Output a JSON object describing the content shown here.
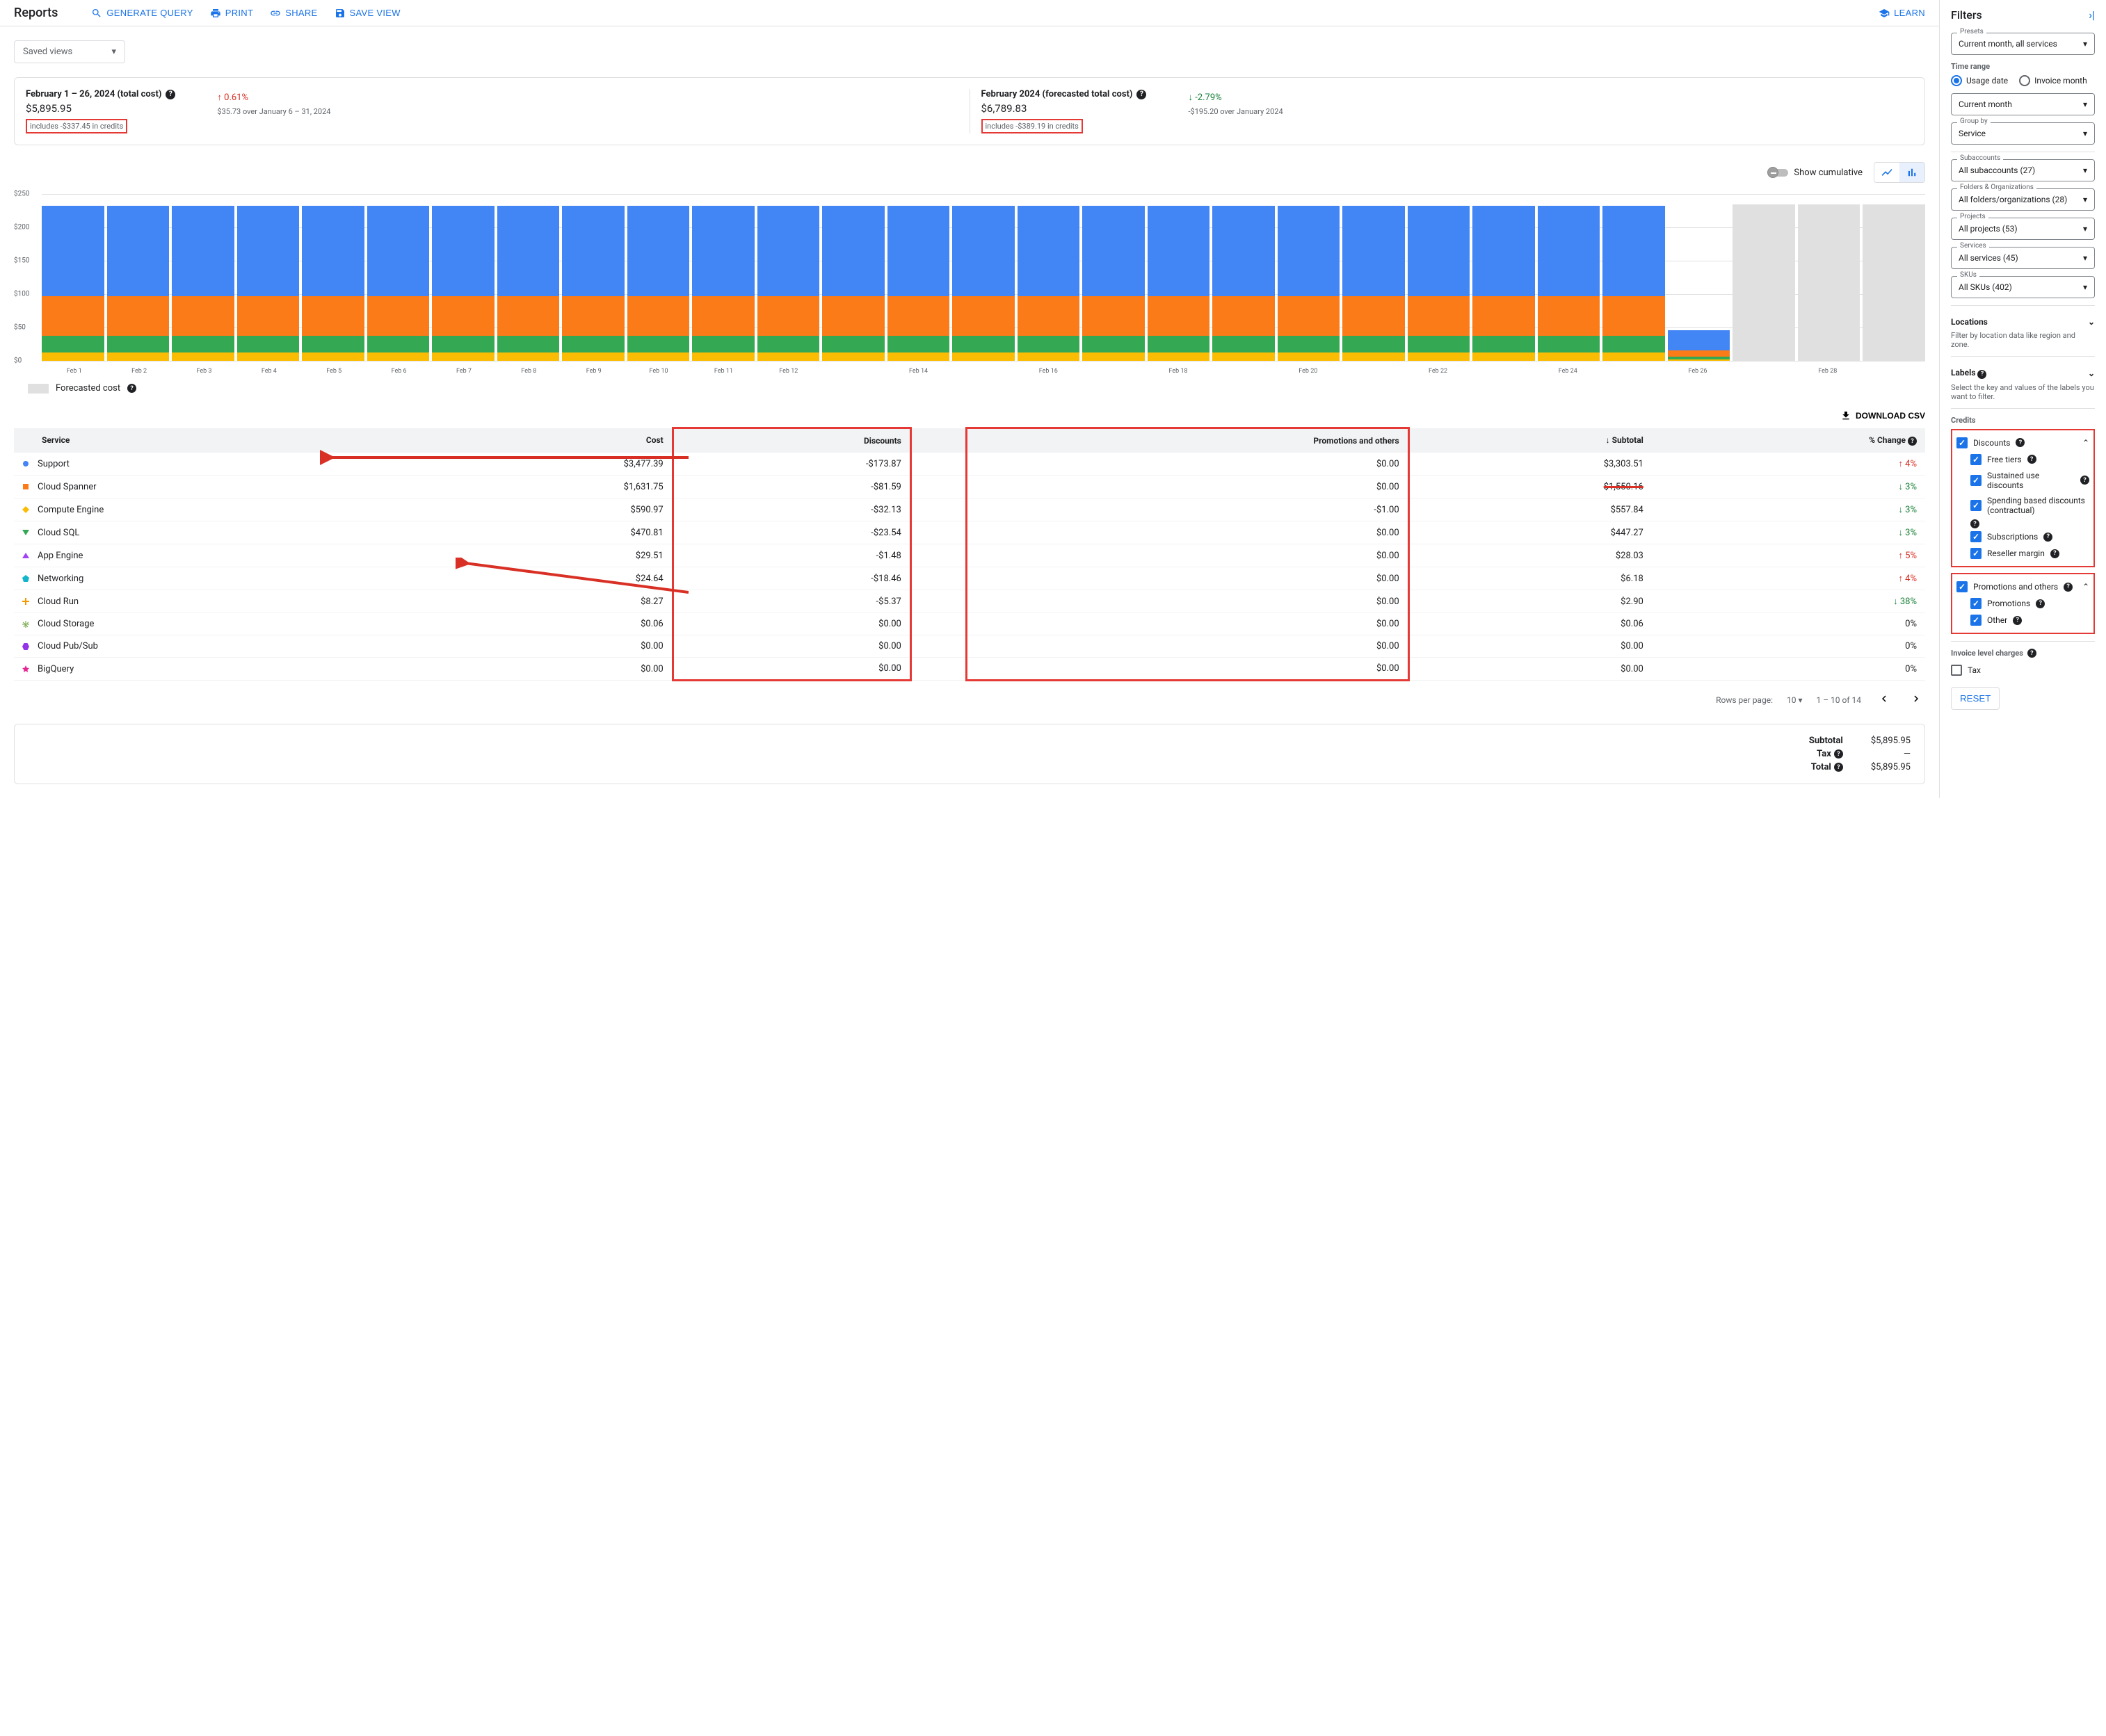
{
  "header": {
    "title": "Reports",
    "generate_query": "GENERATE QUERY",
    "print": "PRINT",
    "share": "SHARE",
    "save_view": "SAVE VIEW",
    "learn": "LEARN"
  },
  "saved_views": "Saved views",
  "summary": {
    "card1": {
      "title": "February 1 – 26, 2024 (total cost)",
      "value": "$5,895.95",
      "credits": "includes -$337.45 in credits",
      "delta": "0.61%",
      "delta_sub": "$35.73 over January 6 – 31, 2024"
    },
    "card2": {
      "title": "February 2024 (forecasted total cost)",
      "value": "$6,789.83",
      "credits": "includes -$389.19 in credits",
      "delta": "-2.79%",
      "delta_sub": "-$195.20 over January 2024"
    }
  },
  "chart_controls": {
    "show_cumulative": "Show cumulative"
  },
  "chart": {
    "type": "stacked-bar",
    "ymax": 250,
    "yticks": [
      "$0",
      "$50",
      "$100",
      "$150",
      "$200",
      "$250"
    ],
    "colors": {
      "blue": "#4285f4",
      "orange": "#fa7b17",
      "green": "#34a853",
      "yellow": "#fbbc04",
      "forecast": "#e0e0e0"
    },
    "days": [
      {
        "label": "Feb 1",
        "stacks": [
          {
            "c": "yellow",
            "v": 12
          },
          {
            "c": "green",
            "v": 25
          },
          {
            "c": "orange",
            "v": 60
          },
          {
            "c": "blue",
            "v": 135
          }
        ],
        "show": true
      },
      {
        "label": "Feb 2",
        "stacks": [
          {
            "c": "yellow",
            "v": 12
          },
          {
            "c": "green",
            "v": 25
          },
          {
            "c": "orange",
            "v": 60
          },
          {
            "c": "blue",
            "v": 135
          }
        ],
        "show": true
      },
      {
        "label": "Feb 3",
        "stacks": [
          {
            "c": "yellow",
            "v": 12
          },
          {
            "c": "green",
            "v": 25
          },
          {
            "c": "orange",
            "v": 60
          },
          {
            "c": "blue",
            "v": 135
          }
        ],
        "show": true
      },
      {
        "label": "Feb 4",
        "stacks": [
          {
            "c": "yellow",
            "v": 12
          },
          {
            "c": "green",
            "v": 25
          },
          {
            "c": "orange",
            "v": 60
          },
          {
            "c": "blue",
            "v": 135
          }
        ],
        "show": true
      },
      {
        "label": "Feb 5",
        "stacks": [
          {
            "c": "yellow",
            "v": 12
          },
          {
            "c": "green",
            "v": 25
          },
          {
            "c": "orange",
            "v": 60
          },
          {
            "c": "blue",
            "v": 135
          }
        ],
        "show": true
      },
      {
        "label": "Feb 6",
        "stacks": [
          {
            "c": "yellow",
            "v": 12
          },
          {
            "c": "green",
            "v": 25
          },
          {
            "c": "orange",
            "v": 60
          },
          {
            "c": "blue",
            "v": 135
          }
        ],
        "show": true
      },
      {
        "label": "Feb 7",
        "stacks": [
          {
            "c": "yellow",
            "v": 12
          },
          {
            "c": "green",
            "v": 25
          },
          {
            "c": "orange",
            "v": 60
          },
          {
            "c": "blue",
            "v": 135
          }
        ],
        "show": true
      },
      {
        "label": "Feb 8",
        "stacks": [
          {
            "c": "yellow",
            "v": 12
          },
          {
            "c": "green",
            "v": 25
          },
          {
            "c": "orange",
            "v": 60
          },
          {
            "c": "blue",
            "v": 135
          }
        ],
        "show": true
      },
      {
        "label": "Feb 9",
        "stacks": [
          {
            "c": "yellow",
            "v": 12
          },
          {
            "c": "green",
            "v": 25
          },
          {
            "c": "orange",
            "v": 60
          },
          {
            "c": "blue",
            "v": 135
          }
        ],
        "show": true
      },
      {
        "label": "Feb 10",
        "stacks": [
          {
            "c": "yellow",
            "v": 12
          },
          {
            "c": "green",
            "v": 25
          },
          {
            "c": "orange",
            "v": 60
          },
          {
            "c": "blue",
            "v": 135
          }
        ],
        "show": true
      },
      {
        "label": "Feb 11",
        "stacks": [
          {
            "c": "yellow",
            "v": 12
          },
          {
            "c": "green",
            "v": 25
          },
          {
            "c": "orange",
            "v": 60
          },
          {
            "c": "blue",
            "v": 135
          }
        ],
        "show": true
      },
      {
        "label": "Feb 12",
        "stacks": [
          {
            "c": "yellow",
            "v": 12
          },
          {
            "c": "green",
            "v": 25
          },
          {
            "c": "orange",
            "v": 60
          },
          {
            "c": "blue",
            "v": 135
          }
        ],
        "show": true
      },
      {
        "label": "",
        "stacks": [
          {
            "c": "yellow",
            "v": 12
          },
          {
            "c": "green",
            "v": 25
          },
          {
            "c": "orange",
            "v": 60
          },
          {
            "c": "blue",
            "v": 135
          }
        ],
        "show": false
      },
      {
        "label": "Feb 14",
        "stacks": [
          {
            "c": "yellow",
            "v": 12
          },
          {
            "c": "green",
            "v": 25
          },
          {
            "c": "orange",
            "v": 60
          },
          {
            "c": "blue",
            "v": 135
          }
        ],
        "show": true
      },
      {
        "label": "",
        "stacks": [
          {
            "c": "yellow",
            "v": 12
          },
          {
            "c": "green",
            "v": 25
          },
          {
            "c": "orange",
            "v": 60
          },
          {
            "c": "blue",
            "v": 135
          }
        ],
        "show": false
      },
      {
        "label": "Feb 16",
        "stacks": [
          {
            "c": "yellow",
            "v": 12
          },
          {
            "c": "green",
            "v": 25
          },
          {
            "c": "orange",
            "v": 60
          },
          {
            "c": "blue",
            "v": 135
          }
        ],
        "show": true
      },
      {
        "label": "",
        "stacks": [
          {
            "c": "yellow",
            "v": 12
          },
          {
            "c": "green",
            "v": 25
          },
          {
            "c": "orange",
            "v": 60
          },
          {
            "c": "blue",
            "v": 135
          }
        ],
        "show": false
      },
      {
        "label": "Feb 18",
        "stacks": [
          {
            "c": "yellow",
            "v": 12
          },
          {
            "c": "green",
            "v": 25
          },
          {
            "c": "orange",
            "v": 60
          },
          {
            "c": "blue",
            "v": 135
          }
        ],
        "show": true
      },
      {
        "label": "",
        "stacks": [
          {
            "c": "yellow",
            "v": 12
          },
          {
            "c": "green",
            "v": 25
          },
          {
            "c": "orange",
            "v": 60
          },
          {
            "c": "blue",
            "v": 135
          }
        ],
        "show": false
      },
      {
        "label": "Feb 20",
        "stacks": [
          {
            "c": "yellow",
            "v": 12
          },
          {
            "c": "green",
            "v": 25
          },
          {
            "c": "orange",
            "v": 60
          },
          {
            "c": "blue",
            "v": 135
          }
        ],
        "show": true
      },
      {
        "label": "",
        "stacks": [
          {
            "c": "yellow",
            "v": 12
          },
          {
            "c": "green",
            "v": 25
          },
          {
            "c": "orange",
            "v": 60
          },
          {
            "c": "blue",
            "v": 135
          }
        ],
        "show": false
      },
      {
        "label": "Feb 22",
        "stacks": [
          {
            "c": "yellow",
            "v": 12
          },
          {
            "c": "green",
            "v": 25
          },
          {
            "c": "orange",
            "v": 60
          },
          {
            "c": "blue",
            "v": 135
          }
        ],
        "show": true
      },
      {
        "label": "",
        "stacks": [
          {
            "c": "yellow",
            "v": 12
          },
          {
            "c": "green",
            "v": 25
          },
          {
            "c": "orange",
            "v": 60
          },
          {
            "c": "blue",
            "v": 135
          }
        ],
        "show": false
      },
      {
        "label": "Feb 24",
        "stacks": [
          {
            "c": "yellow",
            "v": 12
          },
          {
            "c": "green",
            "v": 25
          },
          {
            "c": "orange",
            "v": 60
          },
          {
            "c": "blue",
            "v": 135
          }
        ],
        "show": true
      },
      {
        "label": "",
        "stacks": [
          {
            "c": "yellow",
            "v": 12
          },
          {
            "c": "green",
            "v": 25
          },
          {
            "c": "orange",
            "v": 60
          },
          {
            "c": "blue",
            "v": 135
          }
        ],
        "show": false
      },
      {
        "label": "Feb 26",
        "stacks": [
          {
            "c": "yellow",
            "v": 2
          },
          {
            "c": "green",
            "v": 4
          },
          {
            "c": "orange",
            "v": 10
          },
          {
            "c": "blue",
            "v": 30
          }
        ],
        "show": true
      },
      {
        "label": "",
        "forecast": 234,
        "show": false
      },
      {
        "label": "Feb 28",
        "forecast": 234,
        "show": true
      },
      {
        "label": "",
        "forecast": 234,
        "show": false
      }
    ],
    "legend": "Forecasted cost"
  },
  "download": "DOWNLOAD CSV",
  "table": {
    "headers": {
      "service": "Service",
      "cost": "Cost",
      "discounts": "Discounts",
      "promotions": "Promotions and others",
      "subtotal": "Subtotal",
      "change": "% Change"
    },
    "rows": [
      {
        "marker": "circle",
        "color": "#4285f4",
        "service": "Support",
        "cost": "$3,477.39",
        "discounts": "-$173.87",
        "promo": "$0.00",
        "subtotal": "$3,303.51",
        "change": "4%",
        "dir": "up"
      },
      {
        "marker": "square",
        "color": "#fa7b17",
        "service": "Cloud Spanner",
        "cost": "$1,631.75",
        "discounts": "-$81.59",
        "promo": "$0.00",
        "subtotal": "$1,550.16",
        "change": "3%",
        "dir": "down"
      },
      {
        "marker": "diamond",
        "color": "#fbbc04",
        "service": "Compute Engine",
        "cost": "$590.97",
        "discounts": "-$32.13",
        "promo": "-$1.00",
        "subtotal": "$557.84",
        "change": "3%",
        "dir": "down"
      },
      {
        "marker": "triangle-down",
        "color": "#34a853",
        "service": "Cloud SQL",
        "cost": "$470.81",
        "discounts": "-$23.54",
        "promo": "$0.00",
        "subtotal": "$447.27",
        "change": "3%",
        "dir": "down"
      },
      {
        "marker": "triangle-up",
        "color": "#a142f4",
        "service": "App Engine",
        "cost": "$29.51",
        "discounts": "-$1.48",
        "promo": "$0.00",
        "subtotal": "$28.03",
        "change": "5%",
        "dir": "up"
      },
      {
        "marker": "pentagon",
        "color": "#12b5cb",
        "service": "Networking",
        "cost": "$24.64",
        "discounts": "-$18.46",
        "promo": "$0.00",
        "subtotal": "$6.18",
        "change": "4%",
        "dir": "up"
      },
      {
        "marker": "plus",
        "color": "#f29900",
        "service": "Cloud Run",
        "cost": "$8.27",
        "discounts": "-$5.37",
        "promo": "$0.00",
        "subtotal": "$2.90",
        "change": "38%",
        "dir": "down"
      },
      {
        "marker": "asterisk",
        "color": "#689f38",
        "service": "Cloud Storage",
        "cost": "$0.06",
        "discounts": "$0.00",
        "promo": "$0.00",
        "subtotal": "$0.06",
        "change": "0%",
        "dir": "none"
      },
      {
        "marker": "hexagon",
        "color": "#9334e6",
        "service": "Cloud Pub/Sub",
        "cost": "$0.00",
        "discounts": "$0.00",
        "promo": "$0.00",
        "subtotal": "$0.00",
        "change": "0%",
        "dir": "none"
      },
      {
        "marker": "star",
        "color": "#e52592",
        "service": "BigQuery",
        "cost": "$0.00",
        "discounts": "$0.00",
        "promo": "$0.00",
        "subtotal": "$0.00",
        "change": "0%",
        "dir": "none"
      }
    ]
  },
  "pagination": {
    "rows_per_page": "Rows per page:",
    "value": "10",
    "range": "1 – 10 of 14"
  },
  "totals": {
    "subtotal_label": "Subtotal",
    "subtotal": "$5,895.95",
    "tax_label": "Tax",
    "tax": "—",
    "total_label": "Total",
    "total": "$5,895.95"
  },
  "filters": {
    "title": "Filters",
    "presets": {
      "label": "Presets",
      "value": "Current month, all services"
    },
    "time_range": "Time range",
    "usage_date": "Usage date",
    "invoice_month": "Invoice month",
    "current_month": "Current month",
    "group_by": {
      "label": "Group by",
      "value": "Service"
    },
    "subaccounts": {
      "label": "Subaccounts",
      "value": "All subaccounts (27)"
    },
    "folders": {
      "label": "Folders & Organizations",
      "value": "All folders/organizations (28)"
    },
    "projects": {
      "label": "Projects",
      "value": "All projects (53)"
    },
    "services": {
      "label": "Services",
      "value": "All services (45)"
    },
    "skus": {
      "label": "SKUs",
      "value": "All SKUs (402)"
    },
    "locations": "Locations",
    "locations_sub": "Filter by location data like region and zone.",
    "labels": "Labels",
    "labels_sub": "Select the key and values of the labels you want to filter.",
    "credits": "Credits",
    "discounts": "Discounts",
    "free_tiers": "Free tiers",
    "sustained": "Sustained use discounts",
    "spending": "Spending based discounts (contractual)",
    "subscriptions": "Subscriptions",
    "reseller": "Reseller margin",
    "promotions_others": "Promotions and others",
    "promotions": "Promotions",
    "other": "Other",
    "invoice_charges": "Invoice level charges",
    "tax": "Tax",
    "reset": "RESET"
  }
}
